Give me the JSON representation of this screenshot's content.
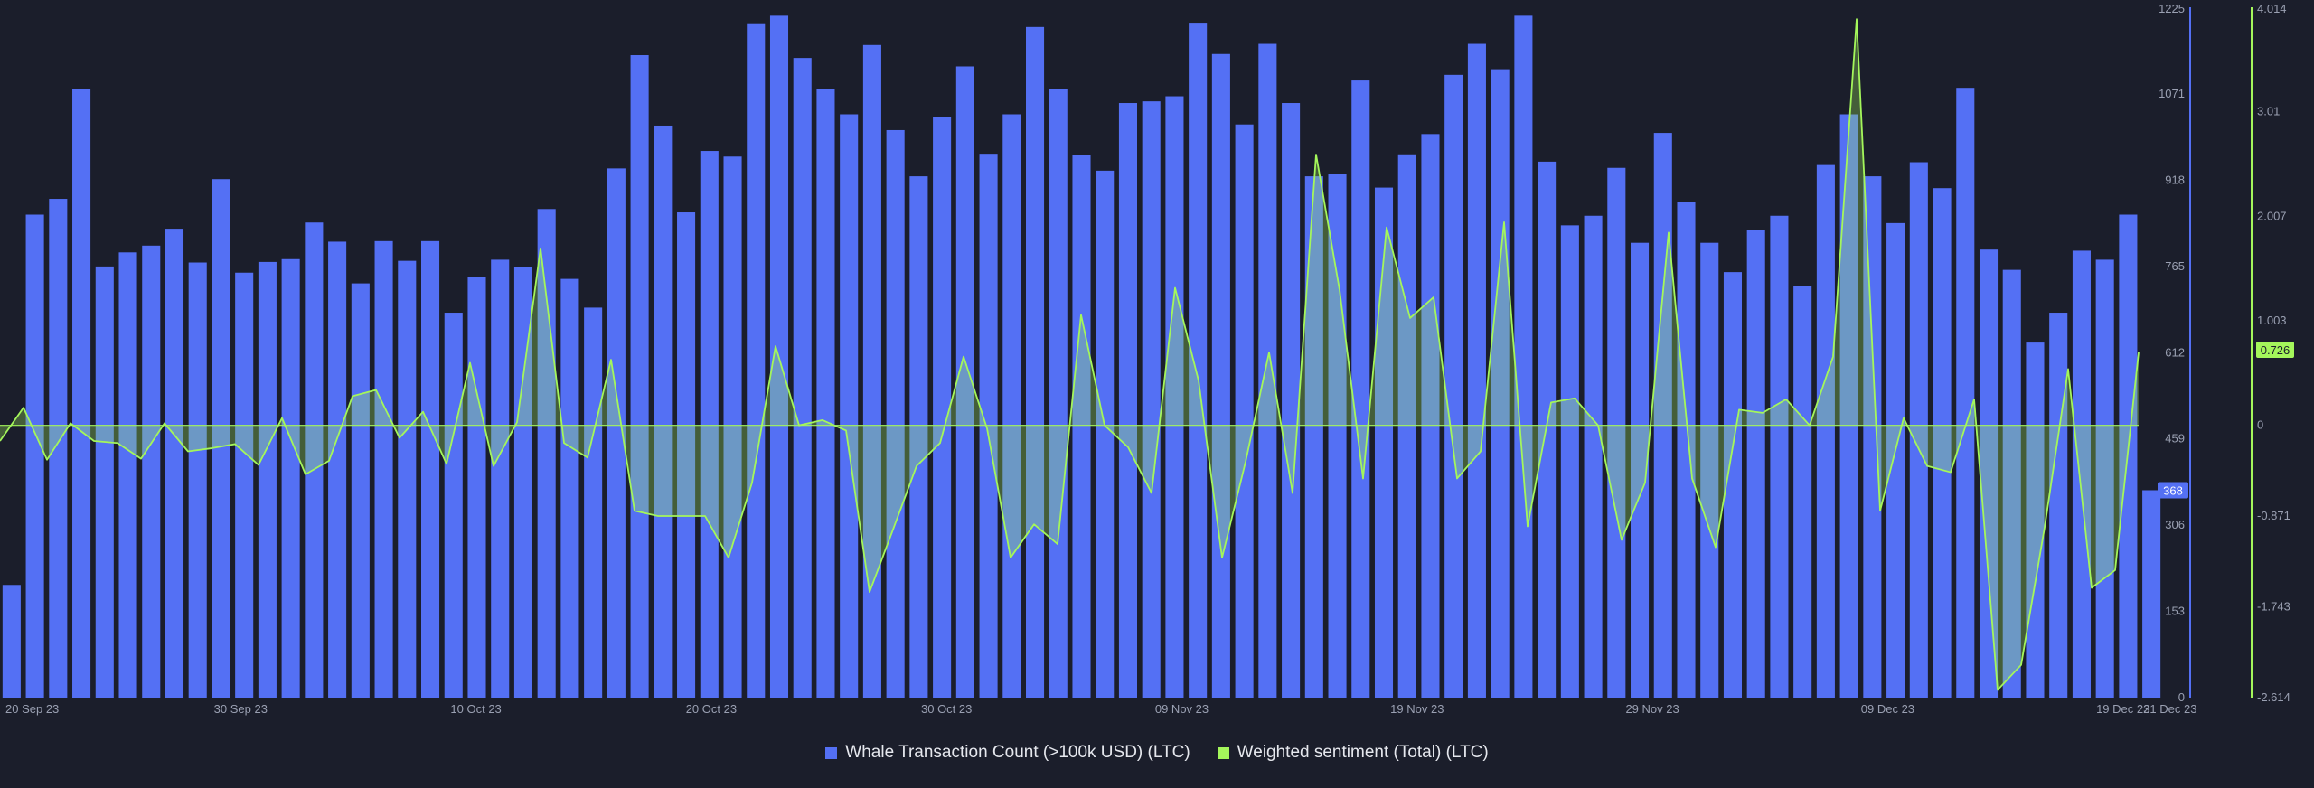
{
  "colors": {
    "background": "#1b1e2b",
    "bars": "#5470f4",
    "sentiment_line": "#a4f65b",
    "sentiment_fill": "#a4f65b",
    "left_axis_line": "#5470f4",
    "right_axis_line": "#a4f65b",
    "tick_text": "#9aa0b2",
    "badge_text_dark": "#1b1e2b"
  },
  "chart_data": {
    "type": "bar",
    "title": "",
    "xlabel": "",
    "grid": false,
    "legend_position": "bottom-center",
    "x_ticks": [
      "20 Sep 23",
      "30 Sep 23",
      "10 Oct 23",
      "20 Oct 23",
      "30 Oct 23",
      "09 Nov 23",
      "19 Nov 23",
      "29 Nov 23",
      "09 Dec 23",
      "19 Dec 23",
      "21 Dec 23"
    ],
    "y_left": {
      "ylabel": "",
      "ylim": [
        0,
        1225
      ],
      "ticks": [
        "1225",
        "1071",
        "918",
        "765",
        "612",
        "459",
        "306",
        "153",
        "0"
      ],
      "last_value_badge": "368"
    },
    "y_right": {
      "ylabel": "",
      "ylim": [
        -2.614,
        4.014
      ],
      "ticks": [
        "4.014",
        "3.01",
        "2.007",
        "1.003",
        "0",
        "-0.871",
        "-1.743",
        "-2.614"
      ],
      "last_value_badge": "0.726"
    },
    "series": [
      {
        "name": "Whale Transaction Count (>100k USD) (LTC)",
        "kind": "bar",
        "axis": "left",
        "values": [
          200,
          857,
          885,
          1080,
          765,
          790,
          802,
          832,
          772,
          920,
          754,
          773,
          778,
          843,
          809,
          735,
          810,
          775,
          810,
          683,
          746,
          777,
          764,
          867,
          743,
          692,
          939,
          1140,
          1015,
          861,
          970,
          960,
          1195,
          1210,
          1135,
          1080,
          1035,
          1158,
          1007,
          925,
          1030,
          1120,
          965,
          1035,
          1190,
          1080,
          963,
          935,
          1055,
          1058,
          1067,
          1196,
          1142,
          1017,
          1160,
          1055,
          925,
          929,
          1095,
          905,
          964,
          1000,
          1105,
          1160,
          1115,
          1210,
          951,
          838,
          855,
          940,
          807,
          1002,
          880,
          807,
          755,
          830,
          855,
          731,
          945,
          1035,
          925,
          842,
          950,
          904,
          1082,
          795,
          759,
          630,
          683,
          793,
          777,
          857,
          368
        ]
      },
      {
        "name": "Weighted sentiment (Total) (LTC)",
        "kind": "area-line",
        "axis": "right",
        "values": [
          -0.15,
          0.17,
          -0.33,
          0.02,
          -0.15,
          -0.17,
          -0.32,
          0.02,
          -0.25,
          -0.22,
          -0.18,
          -0.38,
          0.07,
          -0.47,
          -0.34,
          0.28,
          0.34,
          -0.12,
          0.13,
          -0.37,
          0.6,
          -0.39,
          0.03,
          1.7,
          -0.17,
          -0.31,
          0.63,
          -0.82,
          -0.87,
          -0.87,
          -0.87,
          -1.27,
          -0.55,
          0.76,
          0.0,
          0.05,
          -0.05,
          -1.6,
          -1.0,
          -0.39,
          -0.17,
          0.66,
          -0.03,
          -1.27,
          -0.95,
          -1.14,
          1.06,
          0.0,
          -0.21,
          -0.65,
          1.32,
          0.43,
          -1.27,
          -0.35,
          0.7,
          -0.65,
          2.6,
          1.3,
          -0.51,
          1.9,
          1.03,
          1.23,
          -0.51,
          -0.25,
          1.95,
          -0.97,
          0.22,
          0.26,
          0.0,
          -1.1,
          -0.55,
          1.85,
          -0.51,
          -1.17,
          0.15,
          0.12,
          0.25,
          0.0,
          0.66,
          3.9,
          -0.82,
          0.07,
          -0.39,
          -0.45,
          0.25,
          -2.54,
          -2.3,
          -0.98,
          0.54,
          -1.56,
          -1.39,
          0.7
        ]
      }
    ]
  },
  "legend": {
    "bars_label": "Whale Transaction Count (>100k USD) (LTC)",
    "line_label": "Weighted sentiment (Total) (LTC)"
  }
}
